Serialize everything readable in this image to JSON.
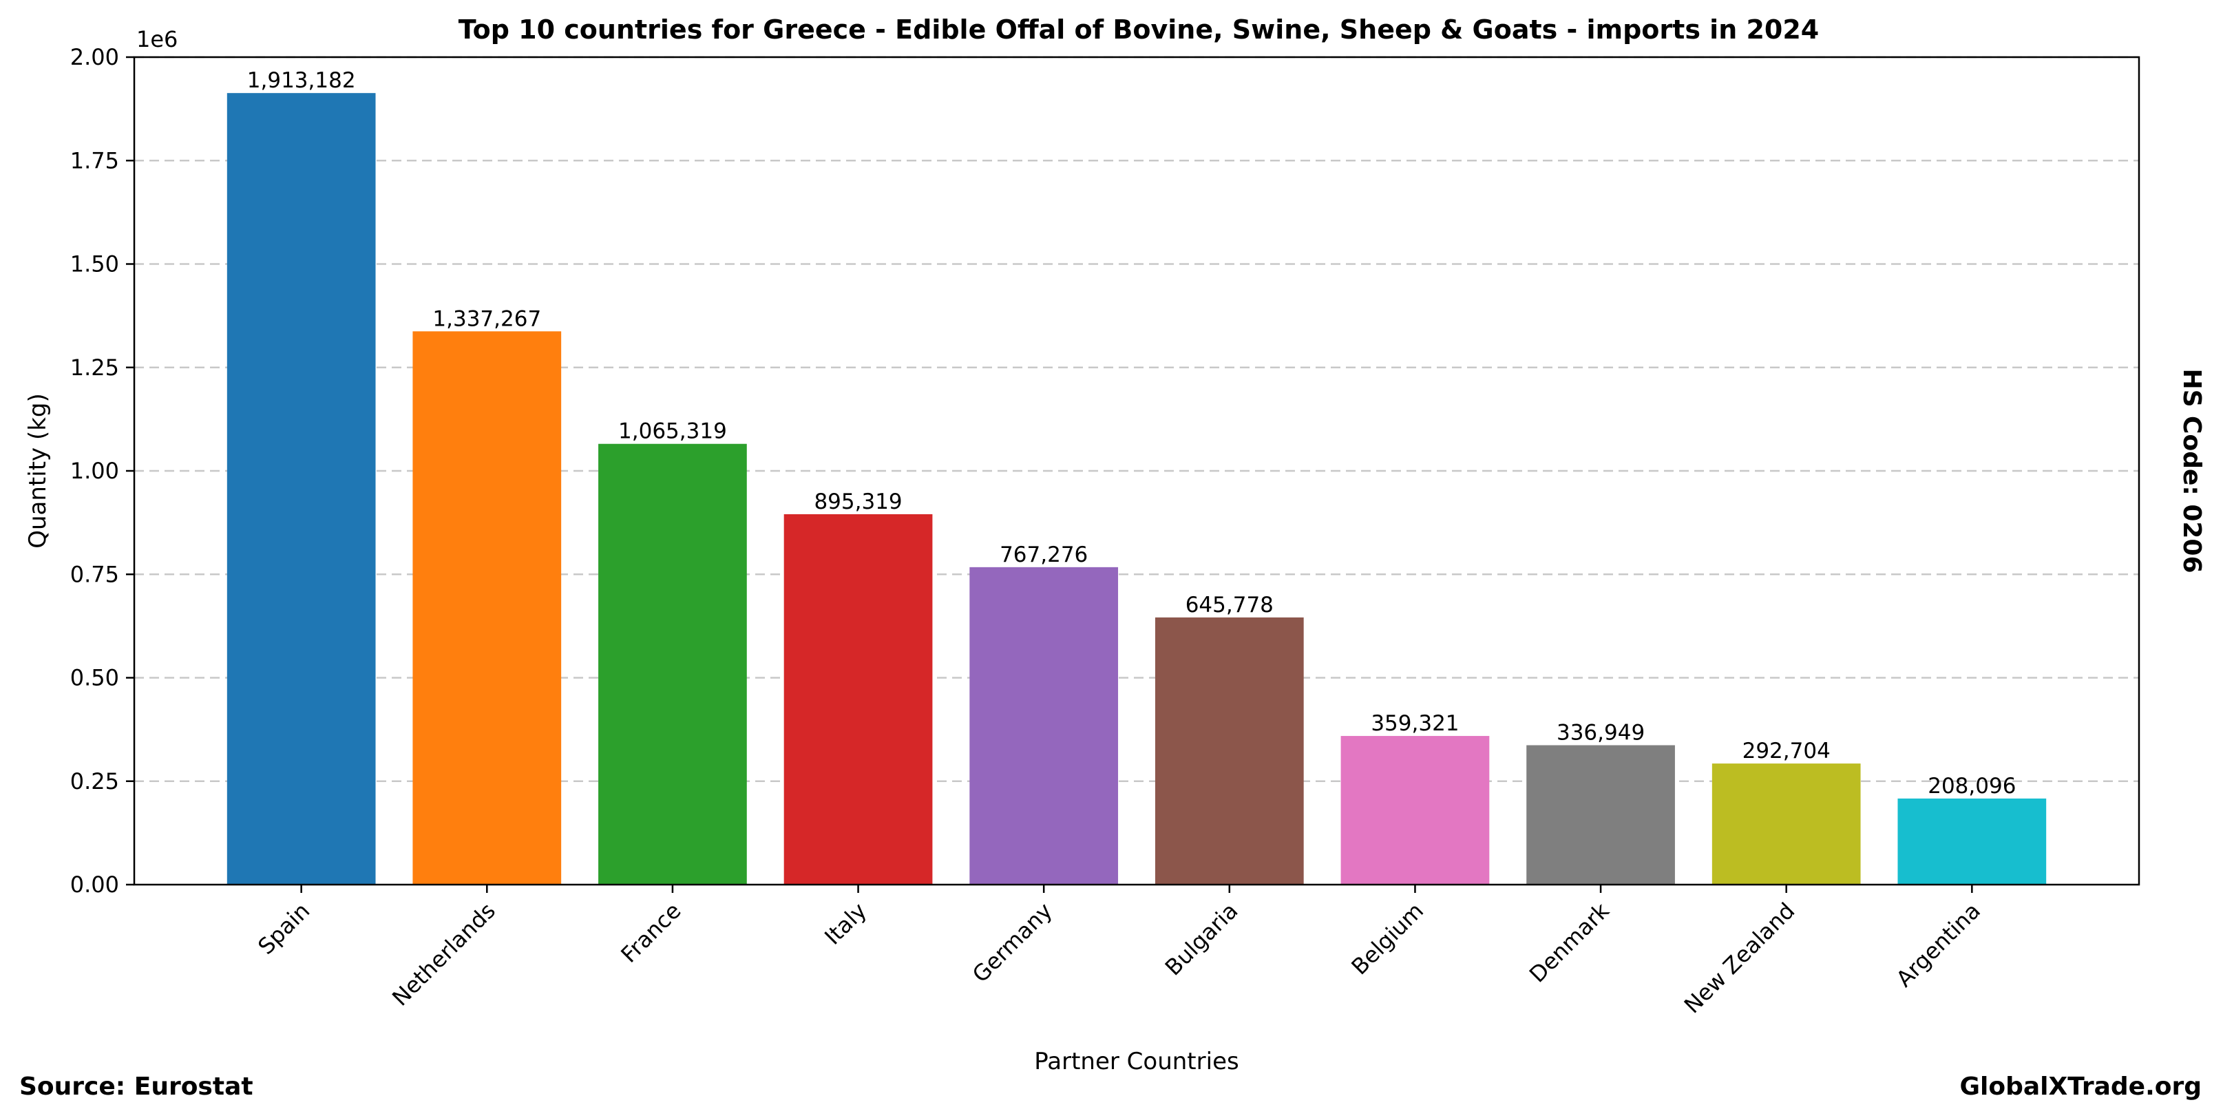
{
  "chart_data": {
    "type": "bar",
    "title": "Top 10 countries for Greece - Edible Offal of Bovine, Swine, Sheep & Goats - imports in 2024",
    "xlabel": "Partner Countries",
    "ylabel": "Quantity (kg)",
    "y_scale_label": "1e6",
    "categories": [
      "Spain",
      "Netherlands",
      "France",
      "Italy",
      "Germany",
      "Bulgaria",
      "Belgium",
      "Denmark",
      "New Zealand",
      "Argentina"
    ],
    "values": [
      1913182,
      1337267,
      1065319,
      895319,
      767276,
      645778,
      359321,
      336949,
      292704,
      208096
    ],
    "value_labels": [
      "1,913,182",
      "1,337,267",
      "1,065,319",
      "895,319",
      "767,276",
      "645,778",
      "359,321",
      "336,949",
      "292,704",
      "208,096"
    ],
    "colors": [
      "#1f77b4",
      "#ff7f0e",
      "#2ca02c",
      "#d62728",
      "#9467bd",
      "#8c564b",
      "#e377c2",
      "#7f7f7f",
      "#bcbd22",
      "#17becf"
    ],
    "ylim": [
      0,
      2000000
    ],
    "yticks": [
      0,
      250000,
      500000,
      750000,
      1000000,
      1250000,
      1500000,
      1750000,
      2000000
    ],
    "ytick_labels": [
      "0.00",
      "0.25",
      "0.50",
      "0.75",
      "1.00",
      "1.25",
      "1.50",
      "1.75",
      "2.00"
    ],
    "grid": "y-dashed",
    "side_label": "HS Code: 0206",
    "source_label": "Source: Eurostat",
    "brand_label": "GlobalXTrade.org"
  }
}
